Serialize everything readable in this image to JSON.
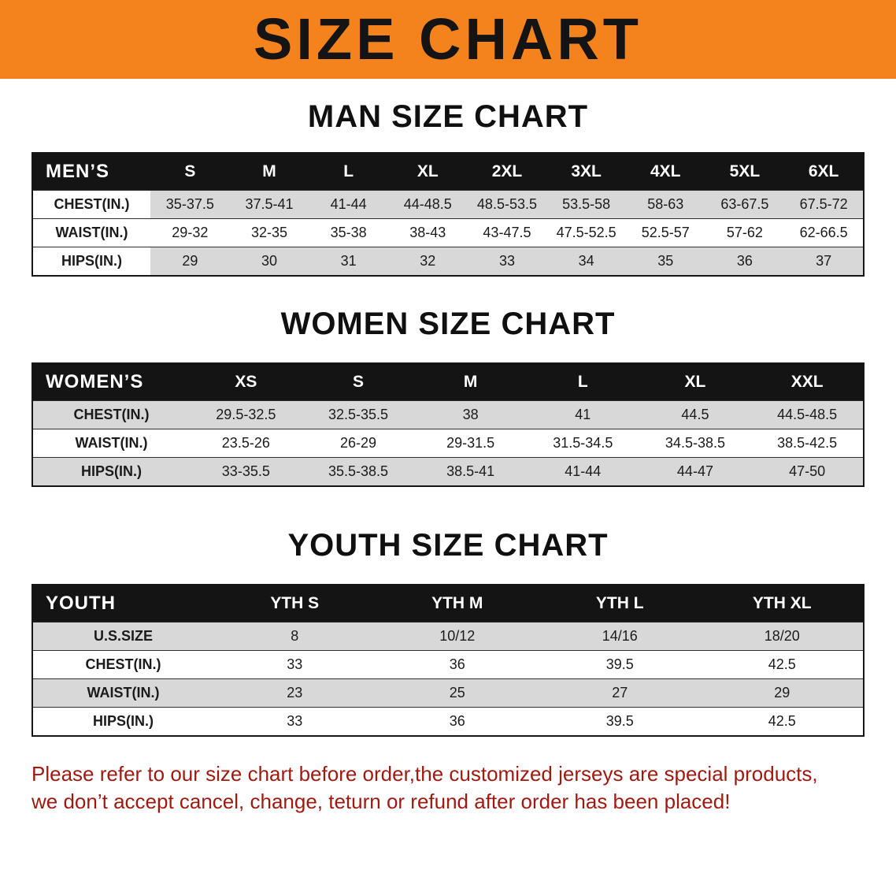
{
  "banner": {
    "title": "SIZE CHART"
  },
  "colors": {
    "banner_bg": "#f5831d",
    "header_row_bg": "#141414",
    "stripe_gray": "#d8d8d8",
    "disclaimer_text": "#9e1a10"
  },
  "sections": [
    {
      "title": "MAN SIZE CHART",
      "header": [
        "MEN’S",
        "S",
        "M",
        "L",
        "XL",
        "2XL",
        "3XL",
        "4XL",
        "5XL",
        "6XL"
      ],
      "rows": [
        [
          "CHEST(IN.)",
          "35-37.5",
          "37.5-41",
          "41-44",
          "44-48.5",
          "48.5-53.5",
          "53.5-58",
          "58-63",
          "63-67.5",
          "67.5-72"
        ],
        [
          "WAIST(IN.)",
          "29-32",
          "32-35",
          "35-38",
          "38-43",
          "43-47.5",
          "47.5-52.5",
          "52.5-57",
          "57-62",
          "62-66.5"
        ],
        [
          "HIPS(IN.)",
          "29",
          "30",
          "31",
          "32",
          "33",
          "34",
          "35",
          "36",
          "37"
        ]
      ]
    },
    {
      "title": "WOMEN SIZE CHART",
      "header": [
        "WOMEN’S",
        "XS",
        "S",
        "M",
        "L",
        "XL",
        "XXL"
      ],
      "rows": [
        [
          "CHEST(IN.)",
          "29.5-32.5",
          "32.5-35.5",
          "38",
          "41",
          "44.5",
          "44.5-48.5"
        ],
        [
          "WAIST(IN.)",
          "23.5-26",
          "26-29",
          "29-31.5",
          "31.5-34.5",
          "34.5-38.5",
          "38.5-42.5"
        ],
        [
          "HIPS(IN.)",
          "33-35.5",
          "35.5-38.5",
          "38.5-41",
          "41-44",
          "44-47",
          "47-50"
        ]
      ]
    },
    {
      "title": "YOUTH SIZE CHART",
      "header": [
        "YOUTH",
        "YTH S",
        "YTH M",
        "YTH L",
        "YTH XL"
      ],
      "rows": [
        [
          "U.S.SIZE",
          "8",
          "10/12",
          "14/16",
          "18/20"
        ],
        [
          "CHEST(IN.)",
          "33",
          "36",
          "39.5",
          "42.5"
        ],
        [
          "WAIST(IN.)",
          "23",
          "25",
          "27",
          "29"
        ],
        [
          "HIPS(IN.)",
          "33",
          "36",
          "39.5",
          "42.5"
        ]
      ]
    }
  ],
  "footer": {
    "line1": "Please refer to our size chart before order,the customized jerseys are special products,",
    "line2": "we don’t accept cancel, change, teturn or refund after order has been placed!"
  }
}
